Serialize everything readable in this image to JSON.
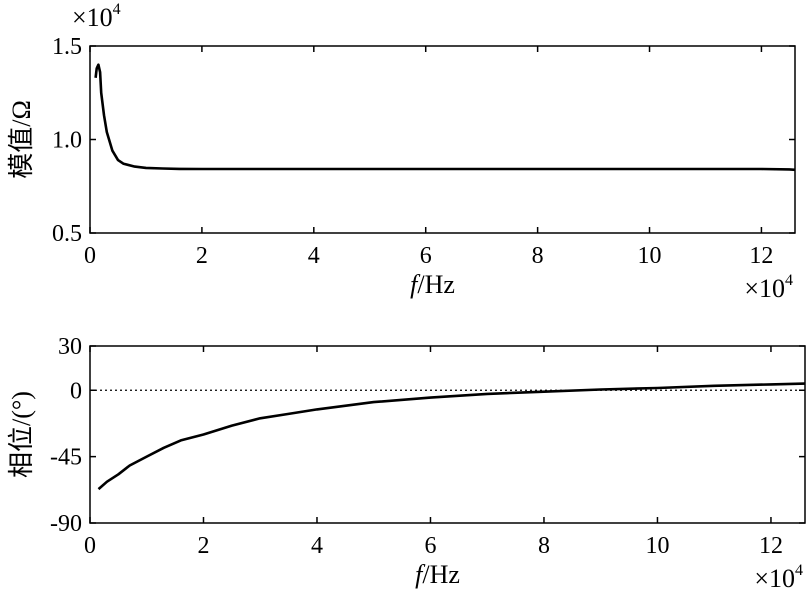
{
  "chart_data": [
    {
      "type": "line",
      "xlabel_italic": "f",
      "xlabel_rest": "/Hz",
      "ylabel": "模值/Ω",
      "x_multiplier": "×10",
      "x_multiplier_exp": "4",
      "y_multiplier": "×10",
      "y_multiplier_exp": "4",
      "xlim": [
        0,
        12.6
      ],
      "ylim": [
        0.5,
        1.5
      ],
      "xticks": [
        0,
        2,
        4,
        6,
        8,
        10,
        12
      ],
      "xtick_labels": [
        "0",
        "2",
        "4",
        "6",
        "8",
        "10",
        "12"
      ],
      "yticks": [
        0.5,
        1.0,
        1.5
      ],
      "ytick_labels": [
        "0.5",
        "1.0",
        "1.5"
      ],
      "grid": false,
      "series": [
        {
          "x": [
            0.1,
            0.12,
            0.15,
            0.18,
            0.2,
            0.25,
            0.3,
            0.4,
            0.5,
            0.6,
            0.8,
            1.0,
            1.3,
            1.6,
            2,
            3,
            4,
            5,
            6,
            7,
            8,
            9,
            10,
            11,
            12,
            12.5,
            12.6
          ],
          "y": [
            1.33,
            1.38,
            1.4,
            1.36,
            1.25,
            1.13,
            1.04,
            0.94,
            0.89,
            0.87,
            0.855,
            0.848,
            0.845,
            0.843,
            0.842,
            0.842,
            0.842,
            0.842,
            0.842,
            0.842,
            0.842,
            0.842,
            0.842,
            0.842,
            0.842,
            0.84,
            0.838
          ]
        }
      ]
    },
    {
      "type": "line",
      "xlabel_italic": "f",
      "xlabel_rest": "/Hz",
      "ylabel": "相位/(°)",
      "x_multiplier": "×10",
      "x_multiplier_exp": "4",
      "xlim": [
        0,
        12.6
      ],
      "ylim": [
        -90,
        30
      ],
      "xticks": [
        0,
        2,
        4,
        6,
        8,
        10,
        12
      ],
      "xtick_labels": [
        "0",
        "2",
        "4",
        "6",
        "8",
        "10",
        "12"
      ],
      "yticks": [
        -90,
        -45,
        0,
        30
      ],
      "ytick_labels": [
        "-90",
        "-45",
        "0",
        "30"
      ],
      "grid": false,
      "reference_line_y": 0,
      "series": [
        {
          "x": [
            0.15,
            0.3,
            0.5,
            0.7,
            1.0,
            1.3,
            1.6,
            2.0,
            2.5,
            3.0,
            3.5,
            4.0,
            5.0,
            6.0,
            7.0,
            8.0,
            9.0,
            10.0,
            11.0,
            12.0,
            12.6
          ],
          "y": [
            -67,
            -62,
            -57,
            -51,
            -45,
            -39,
            -34,
            -30,
            -24,
            -19,
            -16,
            -13,
            -8,
            -5,
            -2.5,
            -1,
            0.5,
            1.5,
            3,
            4,
            4.5
          ]
        }
      ]
    }
  ]
}
